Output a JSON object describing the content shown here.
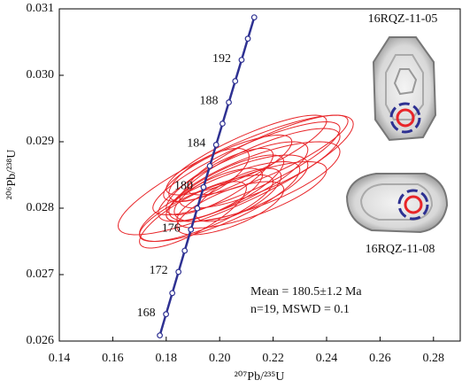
{
  "chart_data": {
    "type": "concordia",
    "x_label": "²⁰⁷Pb/²³⁵U",
    "y_label": "²⁰⁶Pb/²³⁸U",
    "xlim": [
      0.14,
      0.29
    ],
    "ylim": [
      0.026,
      0.031
    ],
    "xticks": [
      0.14,
      0.16,
      0.18,
      {
        "value": 0.2,
        "label": "0.20"
      },
      0.22,
      0.24,
      0.26,
      0.28
    ],
    "yticks": [
      0.026,
      0.027,
      0.028,
      0.029,
      {
        "value": 0.03,
        "label": "0.030"
      },
      0.031
    ],
    "grid": false,
    "concordia": {
      "color": "#2e3192",
      "x": [
        0.17761,
        0.17993,
        0.18227,
        0.18459,
        0.18692,
        0.18926,
        0.19161,
        0.19396,
        0.19632,
        0.19868,
        0.20106,
        0.20343,
        0.20581,
        0.2082,
        0.21054,
        0.21293
      ],
      "y": [
        0.026085,
        0.026404,
        0.026722,
        0.027041,
        0.02736,
        0.027678,
        0.027997,
        0.028316,
        0.028635,
        0.028954,
        0.029273,
        0.029593,
        0.029913,
        0.030232,
        0.030551,
        0.030872
      ],
      "age_labels": [
        null,
        "168",
        null,
        "172",
        null,
        "176",
        null,
        "180",
        null,
        "184",
        null,
        "188",
        null,
        "192",
        null,
        null
      ]
    },
    "ellipse_color": "#e8262a",
    "ellipses": [
      {
        "x": 0.206,
        "y": 0.0285,
        "sx": 0.044,
        "sy": 0.0009,
        "rho": 0.85
      },
      {
        "x": 0.2,
        "y": 0.0281,
        "sx": 0.03,
        "sy": 0.0006,
        "rho": 0.8
      },
      {
        "x": 0.195,
        "y": 0.028,
        "sx": 0.025,
        "sy": 0.0005,
        "rho": 0.8
      },
      {
        "x": 0.205,
        "y": 0.0284,
        "sx": 0.028,
        "sy": 0.0006,
        "rho": 0.8
      },
      {
        "x": 0.21,
        "y": 0.0286,
        "sx": 0.035,
        "sy": 0.0007,
        "rho": 0.85
      },
      {
        "x": 0.213,
        "y": 0.0284,
        "sx": 0.032,
        "sy": 0.0006,
        "rho": 0.75
      },
      {
        "x": 0.202,
        "y": 0.0283,
        "sx": 0.022,
        "sy": 0.0005,
        "rho": 0.8
      },
      {
        "x": 0.198,
        "y": 0.0282,
        "sx": 0.018,
        "sy": 0.0004,
        "rho": 0.75
      },
      {
        "x": 0.208,
        "y": 0.0283,
        "sx": 0.025,
        "sy": 0.0005,
        "rho": 0.7
      },
      {
        "x": 0.215,
        "y": 0.0286,
        "sx": 0.03,
        "sy": 0.0006,
        "rho": 0.8
      },
      {
        "x": 0.2,
        "y": 0.0284,
        "sx": 0.02,
        "sy": 0.0005,
        "rho": 0.8
      },
      {
        "x": 0.21,
        "y": 0.0288,
        "sx": 0.03,
        "sy": 0.0006,
        "rho": 0.85
      },
      {
        "x": 0.196,
        "y": 0.0285,
        "sx": 0.015,
        "sy": 0.0004,
        "rho": 0.7
      },
      {
        "x": 0.204,
        "y": 0.028,
        "sx": 0.02,
        "sy": 0.0004,
        "rho": 0.7
      },
      {
        "x": 0.212,
        "y": 0.0282,
        "sx": 0.028,
        "sy": 0.0005,
        "rho": 0.75
      },
      {
        "x": 0.19,
        "y": 0.0279,
        "sx": 0.02,
        "sy": 0.0005,
        "rho": 0.8
      },
      {
        "x": 0.218,
        "y": 0.0288,
        "sx": 0.03,
        "sy": 0.0006,
        "rho": 0.85
      },
      {
        "x": 0.203,
        "y": 0.0286,
        "sx": 0.024,
        "sy": 0.0005,
        "rho": 0.8
      },
      {
        "x": 0.207,
        "y": 0.0282,
        "sx": 0.016,
        "sy": 0.0004,
        "rho": 0.7
      }
    ],
    "annotations": [
      "Mean = 180.5±1.2 Ma",
      "n=19, MSWD = 0.1"
    ],
    "insets": [
      {
        "label": "16RQZ-11-05"
      },
      {
        "label": "16RQZ-11-08"
      }
    ]
  }
}
